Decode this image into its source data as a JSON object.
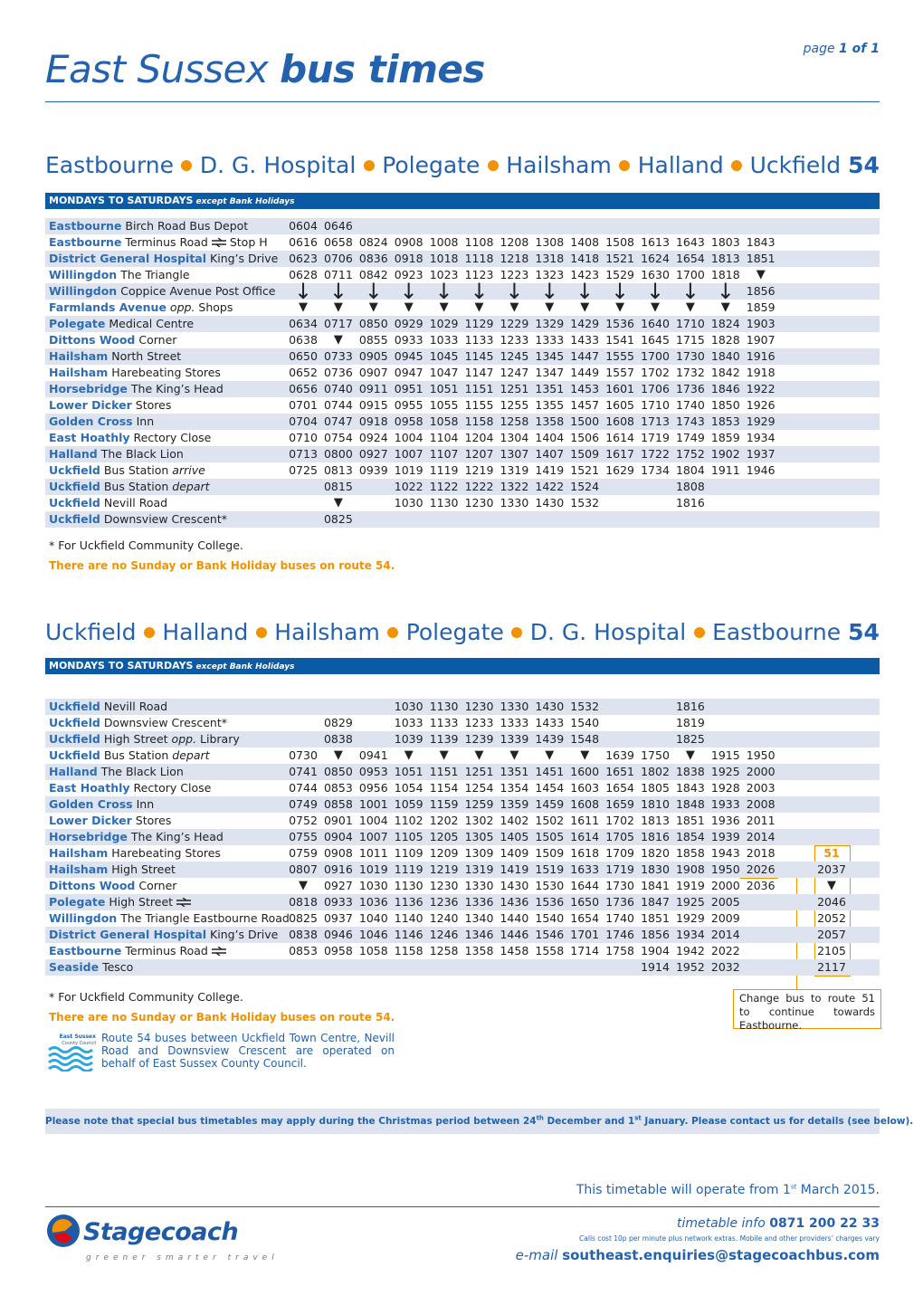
{
  "header": {
    "page_word": "page",
    "page_count": "1 of 1",
    "title_light": "East Sussex",
    "title_bold": "bus times"
  },
  "timetables": [
    {
      "places": [
        "Eastbourne",
        "D. G. Hospital",
        "Polegate",
        "Hailsham",
        "Halland",
        "Uckfield"
      ],
      "route": "54",
      "days": "MONDAYS TO SATURDAYS",
      "days_note": "except Bank Holidays",
      "rows": [
        {
          "town": "Eastbourne",
          "detail": "Birch Road Bus Depot",
          "times": [
            "0604",
            "0646"
          ]
        },
        {
          "town": "Eastbourne",
          "detail": "Terminus Road",
          "rail": true,
          "after": "Stop H",
          "times": [
            "0616",
            "0658",
            "0824",
            "0908",
            "1008",
            "1108",
            "1208",
            "1308",
            "1408",
            "1508",
            "1613",
            "1643",
            "1803",
            "1843"
          ]
        },
        {
          "town": "District General Hospital",
          "detail": "King’s Drive",
          "times": [
            "0623",
            "0706",
            "0836",
            "0918",
            "1018",
            "1118",
            "1218",
            "1318",
            "1418",
            "1521",
            "1624",
            "1654",
            "1813",
            "1851"
          ]
        },
        {
          "town": "Willingdon",
          "detail": "The Triangle",
          "times": [
            "0628",
            "0711",
            "0842",
            "0923",
            "1023",
            "1123",
            "1223",
            "1323",
            "1423",
            "1529",
            "1630",
            "1700",
            "1818",
            "▼"
          ]
        },
        {
          "town": "Willingdon",
          "detail": "Coppice Avenue Post Office",
          "times": [
            "↓",
            "↓",
            "↓",
            "↓",
            "↓",
            "↓",
            "↓",
            "↓",
            "↓",
            "↓",
            "↓",
            "↓",
            "↓",
            "1856"
          ]
        },
        {
          "town": "Farmlands Avenue",
          "note": "opp.",
          "after": "Shops",
          "times": [
            "▼",
            "▼",
            "▼",
            "▼",
            "▼",
            "▼",
            "▼",
            "▼",
            "▼",
            "▼",
            "▼",
            "▼",
            "▼",
            "1859"
          ]
        },
        {
          "town": "Polegate",
          "detail": "Medical Centre",
          "times": [
            "0634",
            "0717",
            "0850",
            "0929",
            "1029",
            "1129",
            "1229",
            "1329",
            "1429",
            "1536",
            "1640",
            "1710",
            "1824",
            "1903"
          ]
        },
        {
          "town": "Dittons Wood",
          "detail": "Corner",
          "times": [
            "0638",
            "▼",
            "0855",
            "0933",
            "1033",
            "1133",
            "1233",
            "1333",
            "1433",
            "1541",
            "1645",
            "1715",
            "1828",
            "1907"
          ]
        },
        {
          "town": "Hailsham",
          "detail": "North Street",
          "times": [
            "0650",
            "0733",
            "0905",
            "0945",
            "1045",
            "1145",
            "1245",
            "1345",
            "1447",
            "1555",
            "1700",
            "1730",
            "1840",
            "1916"
          ]
        },
        {
          "town": "Hailsham",
          "detail": "Harebeating Stores",
          "times": [
            "0652",
            "0736",
            "0907",
            "0947",
            "1047",
            "1147",
            "1247",
            "1347",
            "1449",
            "1557",
            "1702",
            "1732",
            "1842",
            "1918"
          ]
        },
        {
          "town": "Horsebridge",
          "detail": "The King’s Head",
          "times": [
            "0656",
            "0740",
            "0911",
            "0951",
            "1051",
            "1151",
            "1251",
            "1351",
            "1453",
            "1601",
            "1706",
            "1736",
            "1846",
            "1922"
          ]
        },
        {
          "town": "Lower Dicker",
          "detail": "Stores",
          "times": [
            "0701",
            "0744",
            "0915",
            "0955",
            "1055",
            "1155",
            "1255",
            "1355",
            "1457",
            "1605",
            "1710",
            "1740",
            "1850",
            "1926"
          ]
        },
        {
          "town": "Golden Cross",
          "detail": "Inn",
          "times": [
            "0704",
            "0747",
            "0918",
            "0958",
            "1058",
            "1158",
            "1258",
            "1358",
            "1500",
            "1608",
            "1713",
            "1743",
            "1853",
            "1929"
          ]
        },
        {
          "town": "East Hoathly",
          "detail": "Rectory Close",
          "times": [
            "0710",
            "0754",
            "0924",
            "1004",
            "1104",
            "1204",
            "1304",
            "1404",
            "1506",
            "1614",
            "1719",
            "1749",
            "1859",
            "1934"
          ]
        },
        {
          "town": "Halland",
          "detail": "The Black Lion",
          "times": [
            "0713",
            "0800",
            "0927",
            "1007",
            "1107",
            "1207",
            "1307",
            "1407",
            "1509",
            "1617",
            "1722",
            "1752",
            "1902",
            "1937"
          ]
        },
        {
          "town": "Uckfield",
          "detail": "Bus Station",
          "note": "arrive",
          "times": [
            "0725",
            "0813",
            "0939",
            "1019",
            "1119",
            "1219",
            "1319",
            "1419",
            "1521",
            "1629",
            "1734",
            "1804",
            "1911",
            "1946"
          ]
        },
        {
          "town": "Uckfield",
          "detail": "Bus Station",
          "note": "depart",
          "times": [
            null,
            "0815",
            null,
            "1022",
            "1122",
            "1222",
            "1322",
            "1422",
            "1524",
            null,
            null,
            "1808"
          ]
        },
        {
          "town": "Uckfield",
          "detail": "Nevill Road",
          "times": [
            null,
            "▼",
            null,
            "1030",
            "1130",
            "1230",
            "1330",
            "1430",
            "1532",
            null,
            null,
            "1816"
          ]
        },
        {
          "town": "Uckfield",
          "detail": "Downsview Crescent*",
          "times": [
            null,
            "0825"
          ]
        }
      ],
      "footnote": "* For Uckfield Community College.",
      "no_service": "There are no Sunday or Bank Holiday buses on route 54."
    },
    {
      "places": [
        "Uckfield",
        "Halland",
        "Hailsham",
        "Polegate",
        "D. G. Hospital",
        "Eastbourne"
      ],
      "route": "54",
      "days": "MONDAYS TO SATURDAYS",
      "days_note": "except Bank Holidays",
      "rows": [
        {
          "town": "Uckfield",
          "detail": "Nevill Road",
          "times": [
            null,
            null,
            null,
            "1030",
            "1130",
            "1230",
            "1330",
            "1430",
            "1532",
            null,
            null,
            "1816"
          ]
        },
        {
          "town": "Uckfield",
          "detail": "Downsview Crescent*",
          "times": [
            null,
            "0829",
            null,
            "1033",
            "1133",
            "1233",
            "1333",
            "1433",
            "1540",
            null,
            null,
            "1819"
          ]
        },
        {
          "town": "Uckfield",
          "detail": "High Street",
          "note": "opp.",
          "after": "Library",
          "times": [
            null,
            "0838",
            null,
            "1039",
            "1139",
            "1239",
            "1339",
            "1439",
            "1548",
            null,
            null,
            "1825"
          ]
        },
        {
          "town": "Uckfield",
          "detail": "Bus Station",
          "note": "depart",
          "times": [
            "0730",
            "▼",
            "0941",
            "▼",
            "▼",
            "▼",
            "▼",
            "▼",
            "▼",
            "1639",
            "1750",
            "▼",
            "1915",
            "1950"
          ]
        },
        {
          "town": "Halland",
          "detail": "The Black Lion",
          "times": [
            "0741",
            "0850",
            "0953",
            "1051",
            "1151",
            "1251",
            "1351",
            "1451",
            "1600",
            "1651",
            "1802",
            "1838",
            "1925",
            "2000"
          ]
        },
        {
          "town": "East Hoathly",
          "detail": "Rectory Close",
          "times": [
            "0744",
            "0853",
            "0956",
            "1054",
            "1154",
            "1254",
            "1354",
            "1454",
            "1603",
            "1654",
            "1805",
            "1843",
            "1928",
            "2003"
          ]
        },
        {
          "town": "Golden Cross",
          "detail": "Inn",
          "times": [
            "0749",
            "0858",
            "1001",
            "1059",
            "1159",
            "1259",
            "1359",
            "1459",
            "1608",
            "1659",
            "1810",
            "1848",
            "1933",
            "2008"
          ]
        },
        {
          "town": "Lower Dicker",
          "detail": "Stores",
          "times": [
            "0752",
            "0901",
            "1004",
            "1102",
            "1202",
            "1302",
            "1402",
            "1502",
            "1611",
            "1702",
            "1813",
            "1851",
            "1936",
            "2011"
          ]
        },
        {
          "town": "Horsebridge",
          "detail": "The King’s Head",
          "times": [
            "0755",
            "0904",
            "1007",
            "1105",
            "1205",
            "1305",
            "1405",
            "1505",
            "1614",
            "1705",
            "1816",
            "1854",
            "1939",
            "2014"
          ]
        },
        {
          "town": "Hailsham",
          "detail": "Harebeating Stores",
          "times": [
            "0759",
            "0908",
            "1011",
            "1109",
            "1209",
            "1309",
            "1409",
            "1509",
            "1618",
            "1709",
            "1820",
            "1858",
            "1943",
            "2018",
            "51"
          ]
        },
        {
          "town": "Hailsham",
          "detail": "High Street",
          "times": [
            "0807",
            "0916",
            "1019",
            "1119",
            "1219",
            "1319",
            "1419",
            "1519",
            "1633",
            "1719",
            "1830",
            "1908",
            "1950",
            "2026",
            "2037"
          ]
        },
        {
          "town": "Dittons Wood",
          "detail": "Corner",
          "times": [
            "▼",
            "0927",
            "1030",
            "1130",
            "1230",
            "1330",
            "1430",
            "1530",
            "1644",
            "1730",
            "1841",
            "1919",
            "2000",
            "2036",
            "▼"
          ]
        },
        {
          "town": "Polegate",
          "detail": "High Street",
          "rail": true,
          "times": [
            "0818",
            "0933",
            "1036",
            "1136",
            "1236",
            "1336",
            "1436",
            "1536",
            "1650",
            "1736",
            "1847",
            "1925",
            "2005",
            null,
            "2046"
          ]
        },
        {
          "town": "Willingdon",
          "detail": "The Triangle Eastbourne Road",
          "times": [
            "0825",
            "0937",
            "1040",
            "1140",
            "1240",
            "1340",
            "1440",
            "1540",
            "1654",
            "1740",
            "1851",
            "1929",
            "2009",
            null,
            "2052"
          ]
        },
        {
          "town": "District General Hospital",
          "detail": "King’s Drive",
          "times": [
            "0838",
            "0946",
            "1046",
            "1146",
            "1246",
            "1346",
            "1446",
            "1546",
            "1701",
            "1746",
            "1856",
            "1934",
            "2014",
            null,
            "2057"
          ]
        },
        {
          "town": "Eastbourne",
          "detail": "Terminus Road",
          "rail": true,
          "times": [
            "0853",
            "0958",
            "1058",
            "1158",
            "1258",
            "1358",
            "1458",
            "1558",
            "1714",
            "1758",
            "1904",
            "1942",
            "2022",
            null,
            "2105"
          ]
        },
        {
          "town": "Seaside",
          "detail": "Tesco",
          "times": [
            null,
            null,
            null,
            null,
            null,
            null,
            null,
            null,
            null,
            null,
            "1914",
            "1952",
            "2032",
            null,
            "2117"
          ]
        }
      ],
      "footnote": "* For Uckfield Community College.",
      "no_service": "There are no Sunday or Bank Holiday buses on route 54.",
      "change_note": "Change bus to route 51 to continue towards Eastbourne."
    }
  ],
  "council": {
    "logo_top": "East Sussex",
    "logo_bottom": "County Council",
    "text": "Route 54 buses between Uckfield Town Centre, Nevill Road and Downsview Crescent are operated on behalf of East Sussex County Council."
  },
  "notice": {
    "a": "Please note that special bus timetables may apply during the Christmas period between 24",
    "sup1": "th",
    "b": " December and 1",
    "sup2": "st",
    "c": " January. Please contact us for details (see below)."
  },
  "operate": {
    "a": "This timetable will operate from 1",
    "sup": "st",
    "b": " March 2015."
  },
  "contact": {
    "info_label": "timetable info",
    "phone": "0871 200 22 33",
    "calls": "Calls cost 10p per minute plus network extras. Mobile and other providers’ charges vary",
    "email_label": "e-mail",
    "email": "southeast.enquiries@stagecoachbus.com"
  },
  "brand": {
    "name": "Stagecoach",
    "tagline": "greener smarter travel"
  }
}
